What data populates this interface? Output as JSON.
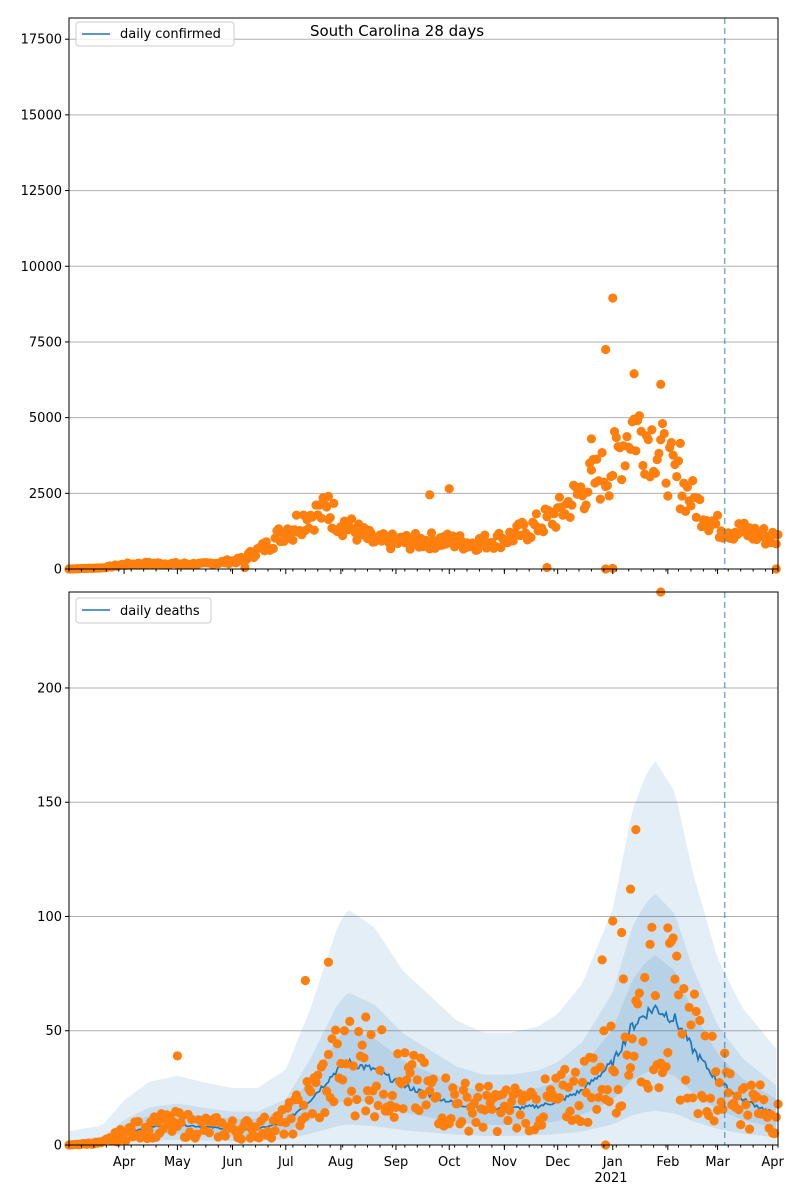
{
  "colors": {
    "line": "#1f77b4",
    "points": "#ff7f0e",
    "band": "#1f77b4",
    "grid": "#b0b0b0"
  },
  "chart_data": [
    {
      "type": "scatter",
      "title": "South Carolina 28 days",
      "legend": [
        "daily confirmed"
      ],
      "legend_position": "top-left",
      "ylim": [
        0,
        18200
      ],
      "yticks": [
        0,
        2500,
        5000,
        7500,
        10000,
        12500,
        15000,
        17500
      ],
      "grid": "horizontal",
      "vline_date": "2021-03-05",
      "xlim": [
        "2020-03-01",
        "2021-04-04"
      ],
      "months": [
        {
          "date": "2020-04-01",
          "label": "Apr"
        },
        {
          "date": "2020-05-01",
          "label": "May"
        },
        {
          "date": "2020-06-01",
          "label": "Jun"
        },
        {
          "date": "2020-07-01",
          "label": "Jul"
        },
        {
          "date": "2020-08-01",
          "label": "Aug"
        },
        {
          "date": "2020-09-01",
          "label": "Sep"
        },
        {
          "date": "2020-10-01",
          "label": "Oct"
        },
        {
          "date": "2020-11-01",
          "label": "Nov"
        },
        {
          "date": "2020-12-01",
          "label": "Dec"
        },
        {
          "date": "2021-01-01",
          "label": "Jan"
        },
        {
          "date": "2021-02-01",
          "label": "Feb"
        },
        {
          "date": "2021-03-01",
          "label": "Mar"
        },
        {
          "date": "2021-04-01",
          "label": "Apr"
        }
      ],
      "year_label": "2021",
      "points_profile": [
        [
          "2020-03-01",
          0
        ],
        [
          "2020-03-20",
          40
        ],
        [
          "2020-04-01",
          150
        ],
        [
          "2020-04-15",
          180
        ],
        [
          "2020-05-15",
          160
        ],
        [
          "2020-06-05",
          280
        ],
        [
          "2020-06-20",
          750
        ],
        [
          "2020-07-01",
          1300
        ],
        [
          "2020-07-15",
          1800
        ],
        [
          "2020-07-25",
          1900
        ],
        [
          "2020-08-05",
          1400
        ],
        [
          "2020-08-20",
          900
        ],
        [
          "2020-09-10",
          900
        ],
        [
          "2020-09-25",
          950
        ],
        [
          "2020-10-15",
          850
        ],
        [
          "2020-11-01",
          1000
        ],
        [
          "2020-11-15",
          1300
        ],
        [
          "2020-12-01",
          1800
        ],
        [
          "2020-12-15",
          2600
        ],
        [
          "2021-01-01",
          3400
        ],
        [
          "2021-01-12",
          4800
        ],
        [
          "2021-01-25",
          4200
        ],
        [
          "2021-02-05",
          3000
        ],
        [
          "2021-02-15",
          2300
        ],
        [
          "2021-03-01",
          1400
        ],
        [
          "2021-04-04",
          1000
        ]
      ],
      "outliers": [
        [
          "2020-12-28",
          7250
        ],
        [
          "2021-01-01",
          8950
        ],
        [
          "2021-01-13",
          6450
        ],
        [
          "2021-01-28",
          6100
        ],
        [
          "2020-10-01",
          2650
        ],
        [
          "2020-09-20",
          2450
        ],
        [
          "2020-07-25",
          2400
        ],
        [
          "2020-12-20",
          4300
        ],
        [
          "2021-02-08",
          4150
        ],
        [
          "2020-07-05",
          950
        ],
        [
          "2020-11-25",
          50
        ],
        [
          "2020-12-28",
          0
        ],
        [
          "2021-01-01",
          20
        ],
        [
          "2021-04-03",
          0
        ],
        [
          "2020-06-08",
          50
        ]
      ]
    },
    {
      "type": "line",
      "title": "",
      "legend": [
        "daily deaths"
      ],
      "legend_position": "top-left",
      "ylim": [
        0,
        242
      ],
      "yticks": [
        0,
        50,
        100,
        150,
        200
      ],
      "grid": "horizontal",
      "vline_date": "2021-03-05",
      "line_profile": [
        [
          "2020-03-01",
          0
        ],
        [
          "2020-03-20",
          1
        ],
        [
          "2020-04-01",
          5
        ],
        [
          "2020-04-15",
          8
        ],
        [
          "2020-05-01",
          9
        ],
        [
          "2020-05-15",
          8
        ],
        [
          "2020-06-01",
          7
        ],
        [
          "2020-06-15",
          7
        ],
        [
          "2020-07-01",
          10
        ],
        [
          "2020-07-15",
          20
        ],
        [
          "2020-07-30",
          33
        ],
        [
          "2020-08-05",
          36
        ],
        [
          "2020-08-20",
          33
        ],
        [
          "2020-09-05",
          26
        ],
        [
          "2020-09-20",
          22
        ],
        [
          "2020-10-05",
          18
        ],
        [
          "2020-10-20",
          16
        ],
        [
          "2020-11-05",
          16
        ],
        [
          "2020-11-20",
          17
        ],
        [
          "2020-12-01",
          19
        ],
        [
          "2020-12-15",
          24
        ],
        [
          "2021-01-01",
          36
        ],
        [
          "2021-01-12",
          52
        ],
        [
          "2021-01-20",
          58
        ],
        [
          "2021-01-25",
          60
        ],
        [
          "2021-02-05",
          55
        ],
        [
          "2021-02-15",
          42
        ],
        [
          "2021-03-01",
          28
        ],
        [
          "2021-03-15",
          20
        ],
        [
          "2021-04-04",
          13
        ]
      ],
      "band_scale": [
        [
          2.7,
          0.0
        ],
        [
          1.8,
          0.25
        ],
        [
          1.35,
          0.55
        ]
      ],
      "points_profile": [
        [
          "2020-03-01",
          0
        ],
        [
          "2020-03-20",
          1
        ],
        [
          "2020-04-01",
          5
        ],
        [
          "2020-04-15",
          8
        ],
        [
          "2020-05-01",
          9
        ],
        [
          "2020-05-15",
          8
        ],
        [
          "2020-06-01",
          7
        ],
        [
          "2020-06-15",
          7
        ],
        [
          "2020-07-01",
          10
        ],
        [
          "2020-07-15",
          20
        ],
        [
          "2020-07-30",
          33
        ],
        [
          "2020-08-05",
          36
        ],
        [
          "2020-08-20",
          33
        ],
        [
          "2020-09-05",
          26
        ],
        [
          "2020-09-20",
          22
        ],
        [
          "2020-10-05",
          18
        ],
        [
          "2020-10-20",
          16
        ],
        [
          "2020-11-05",
          16
        ],
        [
          "2020-11-20",
          17
        ],
        [
          "2020-12-01",
          19
        ],
        [
          "2020-12-15",
          24
        ],
        [
          "2021-01-01",
          36
        ],
        [
          "2021-01-12",
          52
        ],
        [
          "2021-01-20",
          58
        ],
        [
          "2021-01-25",
          60
        ],
        [
          "2021-02-05",
          55
        ],
        [
          "2021-02-15",
          42
        ],
        [
          "2021-03-01",
          28
        ],
        [
          "2021-03-15",
          20
        ],
        [
          "2021-04-04",
          13
        ]
      ],
      "outliers": [
        [
          "2021-01-28",
          242
        ],
        [
          "2021-01-14",
          138
        ],
        [
          "2021-01-11",
          112
        ],
        [
          "2021-01-01",
          98
        ],
        [
          "2021-02-01",
          95
        ],
        [
          "2020-07-25",
          80
        ],
        [
          "2020-07-12",
          72
        ],
        [
          "2020-05-01",
          39
        ],
        [
          "2020-12-26",
          81
        ],
        [
          "2021-01-06",
          93
        ],
        [
          "2020-08-15",
          56
        ],
        [
          "2020-12-28",
          0
        ],
        [
          "2021-04-02",
          5
        ]
      ]
    }
  ]
}
